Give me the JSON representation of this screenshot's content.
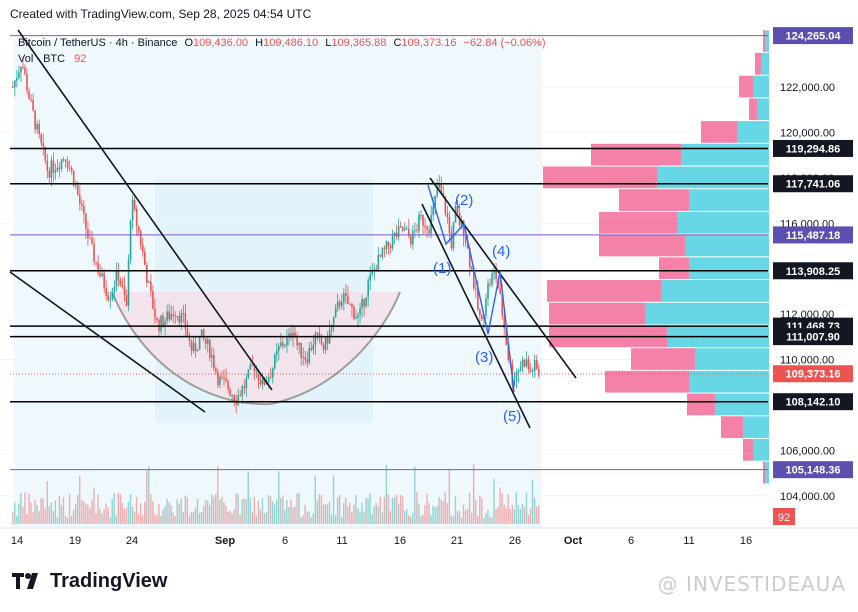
{
  "header": {
    "created_with": "Created with TradingView.com, Sep 28, 2025 04:54 UTC"
  },
  "legend": {
    "symbol": "Bitcoin / TetherUS · 4h · Binance",
    "o_label": "O",
    "o": "109,436.00",
    "h_label": "H",
    "h": "109,486.10",
    "l_label": "L",
    "l": "109,365.88",
    "c_label": "C",
    "c": "109,373.16",
    "change": "−62.84 (−0.06%)",
    "vol_label": "Vol · BTC",
    "vol": "92"
  },
  "footer": {
    "brand": "TradingView",
    "watermark": "@ INVESTIDEAUA"
  },
  "colors": {
    "up": "#26a69a",
    "down": "#ef5350",
    "hline": "#000000",
    "last_price": "#ef5350",
    "badge": "#131722",
    "badge_top": "#7e57c2",
    "badge_bottom": "#5b4fb0",
    "vp_buy": "#4dd0e1",
    "vp_sell": "#f06292",
    "cup_fill": "#f3e0ea",
    "cup_line": "#9e9e9e",
    "wave_label": "#2962ff"
  },
  "chart_data": {
    "type": "candlestick",
    "symbol": "BTCUSDT",
    "interval": "4h",
    "x_ticks": [
      "14",
      "19",
      "24",
      "Sep",
      "6",
      "11",
      "16",
      "21",
      "26",
      "Oct",
      "6",
      "11",
      "16"
    ],
    "y_ticks": [
      "104,000.00",
      "106,000.00",
      "110,000.00",
      "112,000.00",
      "116,000.00",
      "118,000.00",
      "120,000.00",
      "122,000.00"
    ],
    "ylim": [
      102800,
      124600
    ],
    "price_levels": [
      {
        "label": "124,265.04",
        "value": 124265.04,
        "style": "purple"
      },
      {
        "label": "119,294.86",
        "value": 119294.86,
        "style": "dark"
      },
      {
        "label": "117,741.06",
        "value": 117741.06,
        "style": "dark"
      },
      {
        "label": "115,487.18",
        "value": 115487.18,
        "style": "purple"
      },
      {
        "label": "113,908.25",
        "value": 113908.25,
        "style": "dark"
      },
      {
        "label": "111,468.73",
        "value": 111468.73,
        "style": "dark"
      },
      {
        "label": "111,007.90",
        "value": 111007.9,
        "style": "dark"
      },
      {
        "label": "109,373.16",
        "value": 109373.16,
        "style": "red"
      },
      {
        "label": "108,142.10",
        "value": 108142.1,
        "style": "dark"
      },
      {
        "label": "105,148.36",
        "value": 105148.36,
        "style": "purple"
      }
    ],
    "volume_badge": "92",
    "last_price": 109373.16,
    "wave_labels": [
      "(1)",
      "(2)",
      "(3)",
      "(4)",
      "(5)"
    ],
    "price_path": [
      [
        0,
        122000
      ],
      [
        2,
        123200
      ],
      [
        4,
        121300
      ],
      [
        6,
        119700
      ],
      [
        8,
        118300
      ],
      [
        10,
        118600
      ],
      [
        12,
        119000
      ],
      [
        14,
        117900
      ],
      [
        16,
        116300
      ],
      [
        18,
        114800
      ],
      [
        20,
        113700
      ],
      [
        22,
        112800
      ],
      [
        24,
        113800
      ],
      [
        26,
        112300
      ],
      [
        27,
        117000
      ],
      [
        29,
        115400
      ],
      [
        31,
        113200
      ],
      [
        33,
        111500
      ],
      [
        35,
        111800
      ],
      [
        37,
        112200
      ],
      [
        39,
        111700
      ],
      [
        41,
        110300
      ],
      [
        43,
        111000
      ],
      [
        45,
        110400
      ],
      [
        47,
        109100
      ],
      [
        49,
        108800
      ],
      [
        51,
        108300
      ],
      [
        53,
        108900
      ],
      [
        55,
        109800
      ],
      [
        57,
        108900
      ],
      [
        59,
        109500
      ],
      [
        61,
        110600
      ],
      [
        63,
        110900
      ],
      [
        64,
        111500
      ],
      [
        65,
        110500
      ],
      [
        67,
        110100
      ],
      [
        69,
        111000
      ],
      [
        71,
        110500
      ],
      [
        73,
        111600
      ],
      [
        75,
        112800
      ],
      [
        77,
        112300
      ],
      [
        79,
        111800
      ],
      [
        81,
        113300
      ],
      [
        83,
        114200
      ],
      [
        85,
        114800
      ],
      [
        87,
        115400
      ],
      [
        89,
        115700
      ],
      [
        91,
        115300
      ],
      [
        93,
        116200
      ],
      [
        95,
        115900
      ],
      [
        96,
        116600
      ],
      [
        97,
        117700
      ],
      [
        98,
        117100
      ],
      [
        99,
        116400
      ],
      [
        100,
        115000
      ],
      [
        101,
        116500
      ],
      [
        102,
        116000
      ],
      [
        103,
        115700
      ],
      [
        104,
        114600
      ],
      [
        105,
        113600
      ],
      [
        106,
        112300
      ],
      [
        107,
        111500
      ],
      [
        108,
        113000
      ],
      [
        109,
        113500
      ],
      [
        110,
        113900
      ],
      [
        111,
        112900
      ],
      [
        112,
        111600
      ],
      [
        113,
        110200
      ],
      [
        114,
        109100
      ],
      [
        115,
        109500
      ],
      [
        116,
        109800
      ],
      [
        117,
        110000
      ],
      [
        118,
        109400
      ],
      [
        119,
        109700
      ],
      [
        120,
        109373
      ]
    ],
    "volume_profile": [
      {
        "price": 124000,
        "buy": 4,
        "sell": 2
      },
      {
        "price": 123000,
        "buy": 8,
        "sell": 6
      },
      {
        "price": 122000,
        "buy": 16,
        "sell": 14
      },
      {
        "price": 121000,
        "buy": 12,
        "sell": 8
      },
      {
        "price": 120000,
        "buy": 32,
        "sell": 36
      },
      {
        "price": 119000,
        "buy": 88,
        "sell": 90
      },
      {
        "price": 118000,
        "buy": 112,
        "sell": 114
      },
      {
        "price": 117000,
        "buy": 80,
        "sell": 70
      },
      {
        "price": 116000,
        "buy": 92,
        "sell": 78
      },
      {
        "price": 115000,
        "buy": 84,
        "sell": 86
      },
      {
        "price": 114000,
        "buy": 80,
        "sell": 30
      },
      {
        "price": 113000,
        "buy": 108,
        "sell": 114
      },
      {
        "price": 112000,
        "buy": 124,
        "sell": 96
      },
      {
        "price": 111000,
        "buy": 102,
        "sell": 118
      },
      {
        "price": 110000,
        "buy": 74,
        "sell": 64
      },
      {
        "price": 109000,
        "buy": 80,
        "sell": 84
      },
      {
        "price": 108000,
        "buy": 54,
        "sell": 28
      },
      {
        "price": 107000,
        "buy": 26,
        "sell": 22
      },
      {
        "price": 106000,
        "buy": 16,
        "sell": 10
      },
      {
        "price": 105000,
        "buy": 4,
        "sell": 2
      }
    ]
  }
}
